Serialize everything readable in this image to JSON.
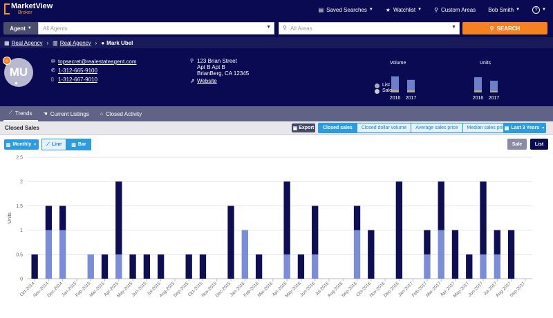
{
  "app": {
    "logo_text": "MarketView",
    "logo_sub": "Broker"
  },
  "topnav": {
    "saved_searches": "Saved Searches",
    "watchlist": "Watchlist",
    "custom_areas": "Custom Areas",
    "user": "Bob Smith",
    "help": "?"
  },
  "search": {
    "agent_label": "Agent",
    "agents_placeholder": "All Agents",
    "areas_placeholder": "All Areas",
    "search_label": "SEARCH"
  },
  "breadcrumb": {
    "items": [
      "Real Agency",
      "Real Agency",
      "Mark Ubel"
    ]
  },
  "profile": {
    "initials": "MU",
    "email": "topsecret@realestateagent.com",
    "phone1": "1-312-665-9100",
    "phone2": "1-312-667-9010",
    "address_line1": "123 Brian Street",
    "address_line2": "Apt B Apt B",
    "address_line3": "BrianBerg, CA 12345",
    "website": "Website"
  },
  "mini_charts": {
    "volume_label": "Volume",
    "units_label": "Units",
    "legend_list": "List",
    "legend_sale": "Sale",
    "years": [
      "2016",
      "2017"
    ],
    "volume": [
      {
        "list": 0.9,
        "sale": 0.15
      },
      {
        "list": 0.7,
        "sale": 0.12
      }
    ],
    "units": [
      {
        "list": 0.85,
        "sale": 0.12
      },
      {
        "list": 0.65,
        "sale": 0.1
      }
    ],
    "colors": {
      "list": "#6c7fc8",
      "sale": "#b0a890"
    }
  },
  "tabs": [
    "Trends",
    "Current Listings",
    "Closed Activity"
  ],
  "section": {
    "title": "Closed Sales",
    "export": "Export",
    "metrics": [
      "Closed sales",
      "Closed dollar volume",
      "Average sales price",
      "Median sales price"
    ],
    "range": "Last 3 Years"
  },
  "controls": {
    "monthly": "Monthly",
    "line": "Line",
    "bar": "Bar",
    "sale": "Sale",
    "list": "List"
  },
  "chart_data": {
    "type": "bar",
    "stacked": true,
    "ylabel": "Units",
    "ylim": [
      0,
      2.5
    ],
    "yticks": [
      0,
      0.5,
      1,
      1.5,
      2,
      2.5
    ],
    "grid": true,
    "categories": [
      "Oct-2014",
      "Nov-2014",
      "Dec-2014",
      "Jan-2015",
      "Feb-2015",
      "Mar-2015",
      "Apr-2015",
      "May-2015",
      "Jun-2015",
      "Jul-2015",
      "Aug-2015",
      "Sep-2015",
      "Oct-2015",
      "Nov-2015",
      "Dec-2015",
      "Jan-2016",
      "Feb-2016",
      "Mar-2016",
      "Apr-2016",
      "May-2016",
      "Jun-2016",
      "Jul-2016",
      "Aug-2016",
      "Sep-2016",
      "Oct-2016",
      "Nov-2016",
      "Dec-2016",
      "Jan-2017",
      "Feb-2017",
      "Mar-2017",
      "Apr-2017",
      "May-2017",
      "Jun-2017",
      "Jul-2017",
      "Aug-2017",
      "Sep-2017"
    ],
    "series": [
      {
        "name": "Sale",
        "color": "#7b8cd8",
        "values": [
          0,
          1,
          1,
          0,
          0.5,
          0,
          0.5,
          0,
          0,
          0,
          0,
          0,
          0,
          0,
          0,
          1,
          0,
          0,
          0.5,
          0,
          0.5,
          0,
          0,
          1,
          0,
          0,
          0,
          0,
          0.5,
          1,
          0,
          0,
          0.5,
          0.5,
          0,
          0
        ]
      },
      {
        "name": "List",
        "color": "#0e0e55",
        "values": [
          0.5,
          0.5,
          0.5,
          0,
          0,
          0.5,
          1.5,
          0.5,
          0.5,
          0.5,
          0,
          0.5,
          0.5,
          0,
          1.5,
          0,
          0.5,
          0,
          1.5,
          0.5,
          1,
          0,
          0,
          0.5,
          1,
          0,
          2,
          0,
          0.5,
          1,
          1,
          0.5,
          1.5,
          0.5,
          1,
          0
        ]
      }
    ],
    "axis_labels": [
      "Oct-2014",
      "Nov-2014",
      "Dec-2014",
      "Jan-2015",
      "Feb-2015",
      "Mar-2015",
      "Apr-2015",
      "May-2015",
      "Jun-2015",
      "Jul-2015",
      "Aug-2015",
      "Sep-2015",
      "Oct-2015",
      "Nov-2015",
      "Dec-2015",
      "Jan-2016",
      "Feb-2016",
      "Mar-2016",
      "Apr-2016",
      "May-2016",
      "Jun-2016",
      "Jul-2016",
      "Aug-2016",
      "Sep-2016",
      "Oct-2016",
      "Nov-2016",
      "Dec-2016",
      "Jan-2017",
      "Feb-2017",
      "Mar-2017",
      "Apr-2017",
      "May-2017",
      "Jun-2017",
      "Jul-2017",
      "Aug-2017",
      "Sep-2017"
    ]
  }
}
